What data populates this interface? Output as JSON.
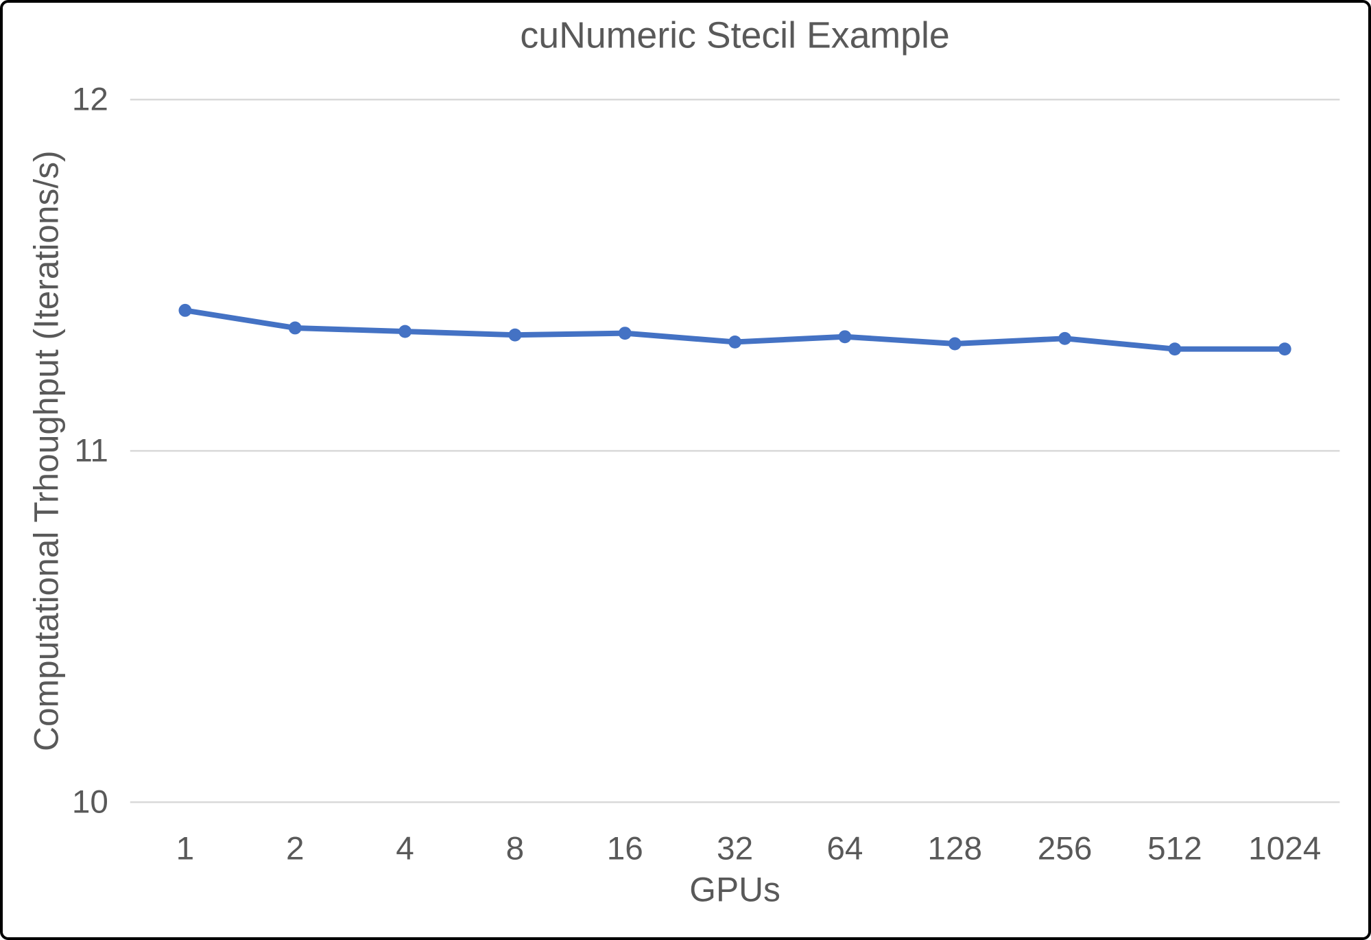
{
  "window": {
    "background": "#ffffff",
    "border_color": "#000000"
  },
  "chart_data": {
    "type": "line",
    "title": "cuNumeric Stecil Example",
    "xlabel": "GPUs",
    "ylabel": "Computational Trhoughput (Iterations/s)",
    "categories": [
      "1",
      "2",
      "4",
      "8",
      "16",
      "32",
      "64",
      "128",
      "256",
      "512",
      "1024"
    ],
    "values": [
      11.4,
      11.35,
      11.34,
      11.33,
      11.335,
      11.31,
      11.325,
      11.305,
      11.32,
      11.29,
      11.29
    ],
    "ylim": [
      10,
      12
    ],
    "y_ticks": [
      12,
      11,
      10
    ],
    "grid": "horizontal gridlines at each y tick",
    "legend": "none",
    "line_color": "#4472C4",
    "marker": "circle",
    "marker_color": "#4472C4",
    "text_color": "#595959",
    "gridline_color": "#D9D9D9"
  }
}
